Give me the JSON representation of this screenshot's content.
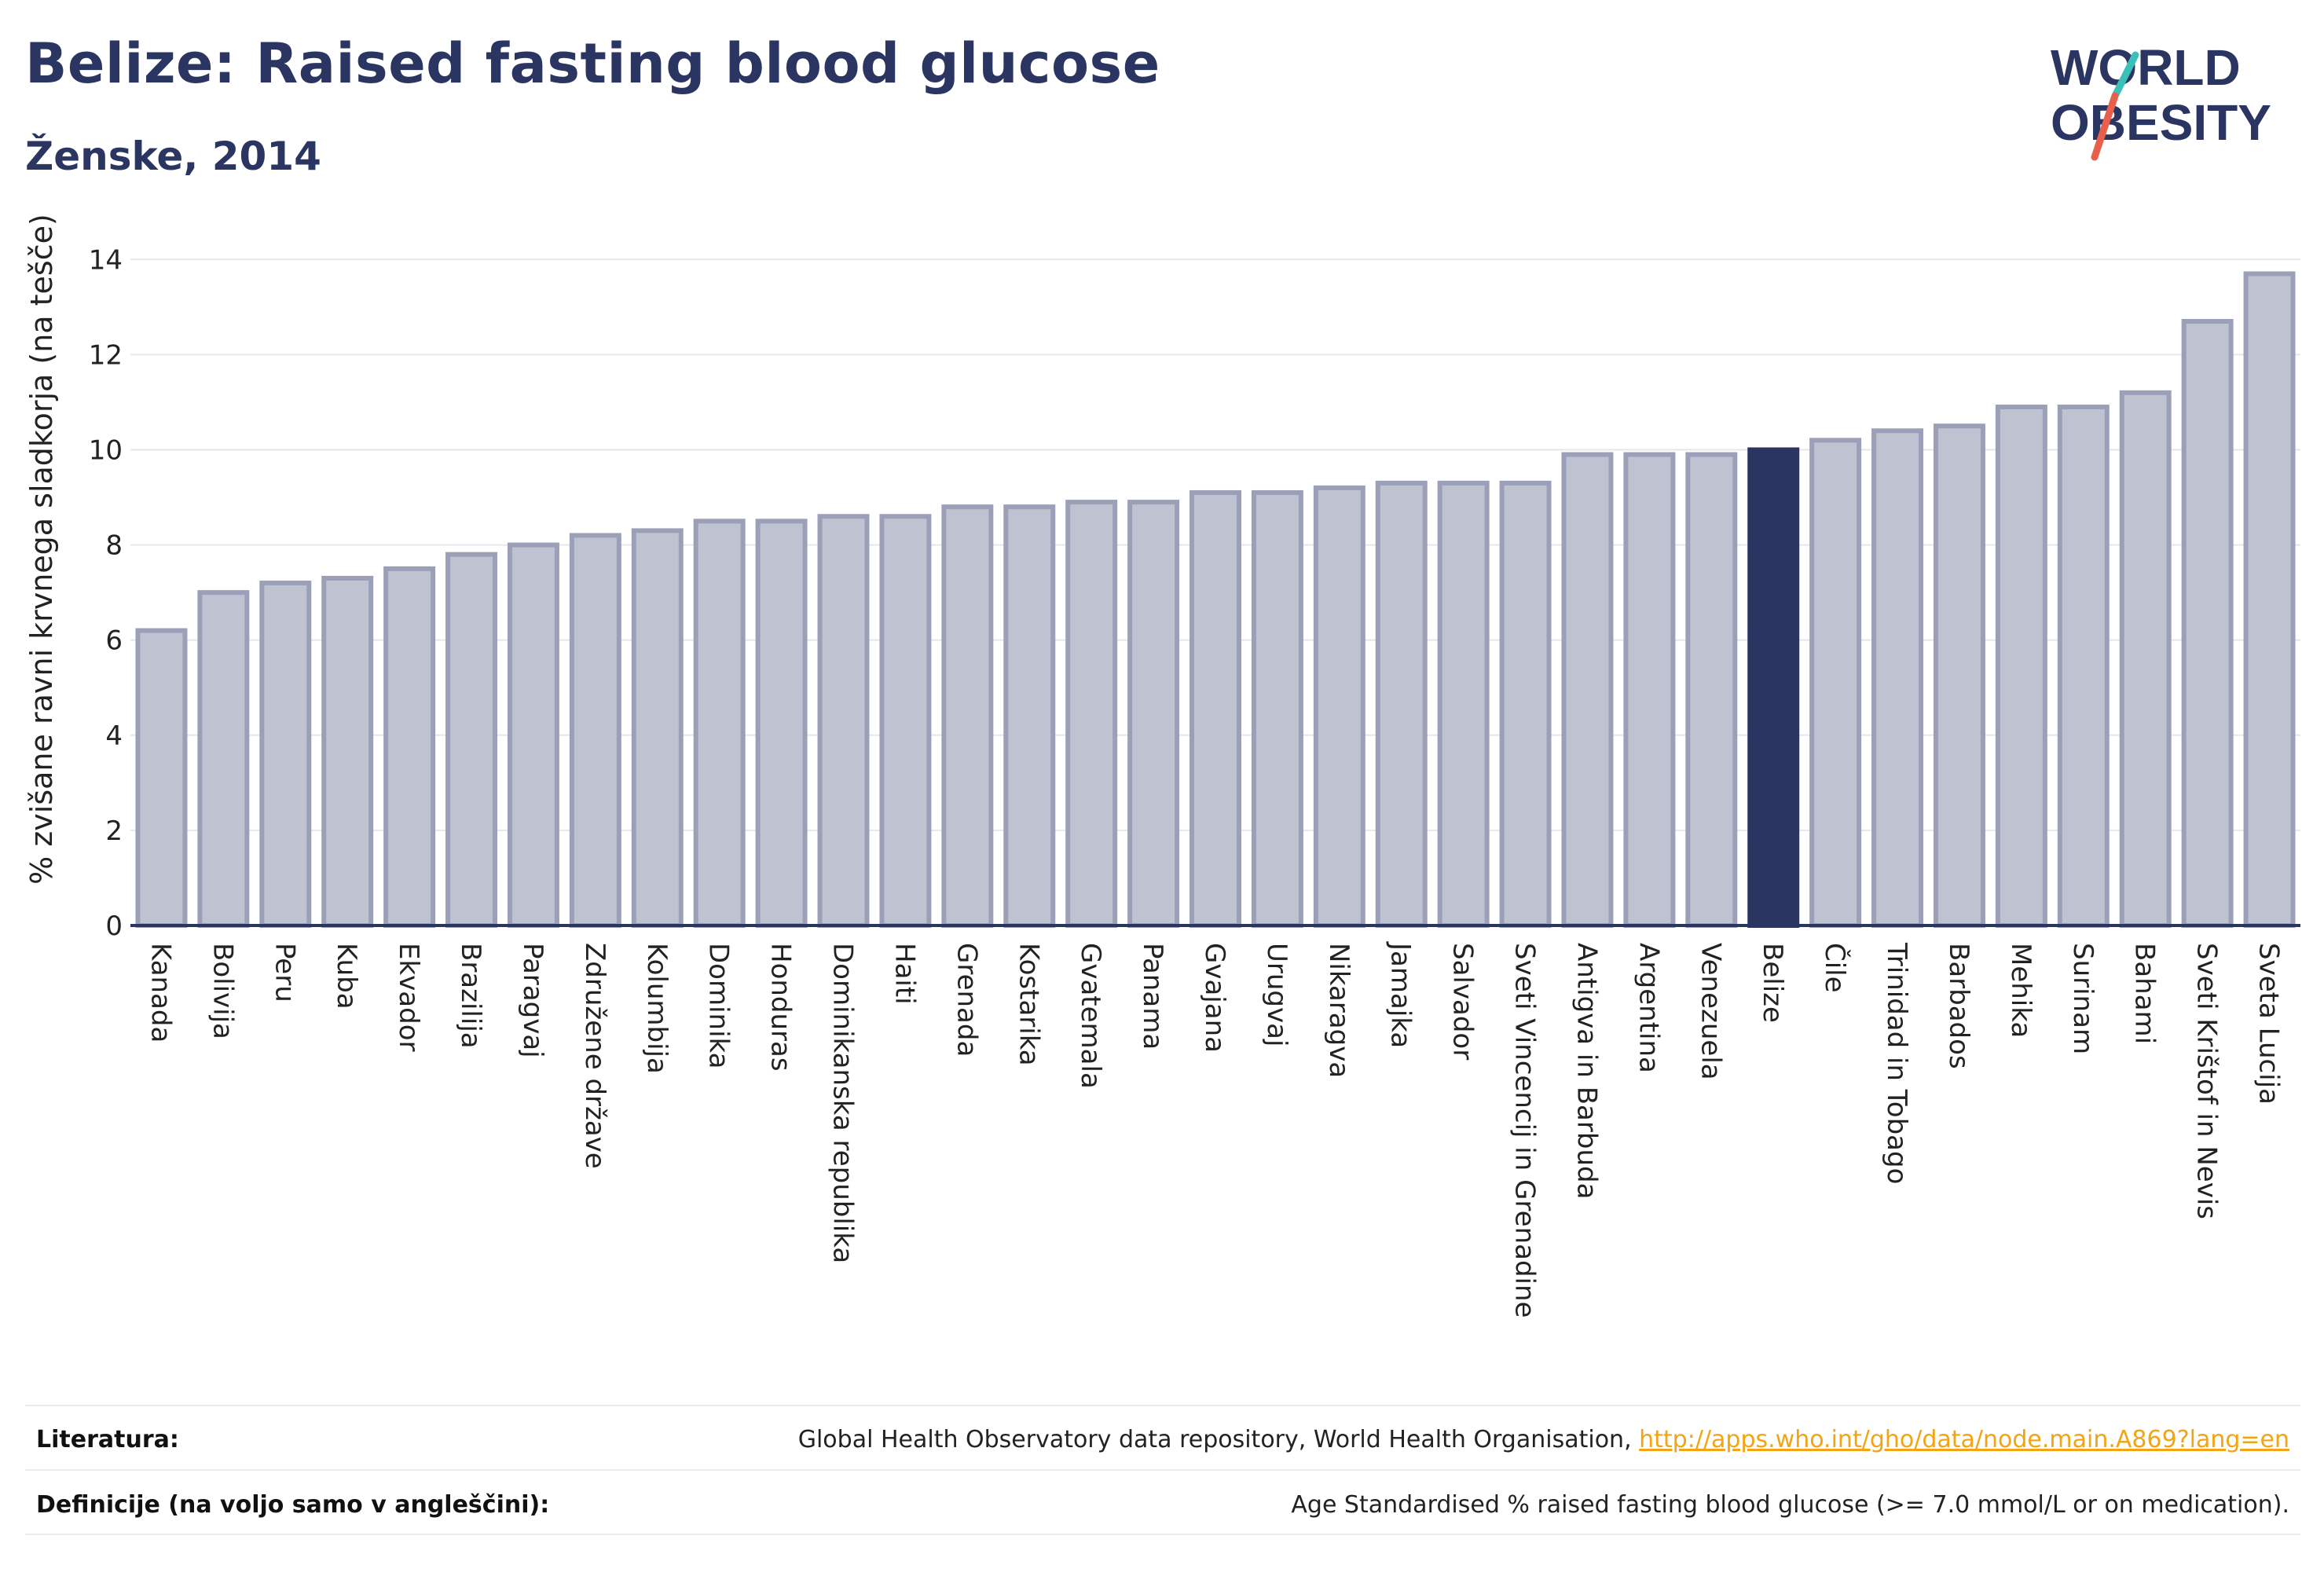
{
  "header": {
    "title": "Belize: Raised fasting blood glucose",
    "subtitle": "Ženske, 2014"
  },
  "logo": {
    "line1": "WORLD",
    "line2": "OBESITY",
    "accent_teal": "#3bbfb9",
    "accent_red": "#e8604c"
  },
  "colors": {
    "bar": "#bfc2d0",
    "bar_border": "#9ba0b8",
    "highlight": "#2b3561",
    "axis": "#2b3561",
    "grid": "#e6e6ee"
  },
  "chart_data": {
    "type": "bar",
    "categories": [
      "Kanada",
      "Bolivija",
      "Peru",
      "Kuba",
      "Ekvador",
      "Brazilija",
      "Paragvaj",
      "Združene države",
      "Kolumbija",
      "Dominika",
      "Honduras",
      "Dominikanska republika",
      "Haiti",
      "Grenada",
      "Kostarika",
      "Gvatemala",
      "Panama",
      "Gvajana",
      "Urugvaj",
      "Nikaragva",
      "Jamajka",
      "Salvador",
      "Sveti Vincencij in Grenadine",
      "Antigva in Barbuda",
      "Argentina",
      "Venezuela",
      "Belize",
      "Čile",
      "Trinidad in Tobago",
      "Barbados",
      "Mehika",
      "Surinam",
      "Bahami",
      "Sveti Krištof in Nevis",
      "Sveta Lucija"
    ],
    "values": [
      6.2,
      7.0,
      7.2,
      7.3,
      7.5,
      7.8,
      8.0,
      8.2,
      8.3,
      8.5,
      8.5,
      8.6,
      8.6,
      8.8,
      8.8,
      8.9,
      8.9,
      9.1,
      9.1,
      9.2,
      9.3,
      9.3,
      9.3,
      9.9,
      9.9,
      9.9,
      10.0,
      10.2,
      10.4,
      10.5,
      10.9,
      10.9,
      11.2,
      12.7,
      13.7
    ],
    "highlight": "Belize",
    "ylabel": "% zvišane ravni krvnega sladkorja (na tešče)",
    "yticks": [
      0,
      2,
      4,
      6,
      8,
      10,
      12,
      14
    ],
    "ylim": [
      0,
      14.5
    ],
    "grid": true
  },
  "footer": {
    "references_label": "Literatura:",
    "references_text": "Global Health Observatory data repository, World Health Organisation, ",
    "references_link": "http://apps.who.int/gho/data/node.main.A869?lang=en",
    "definitions_label": "Definicije (na voljo samo v angleščini):",
    "definitions_text": "Age Standardised % raised fasting blood glucose (>= 7.0 mmol/L or on medication)."
  }
}
